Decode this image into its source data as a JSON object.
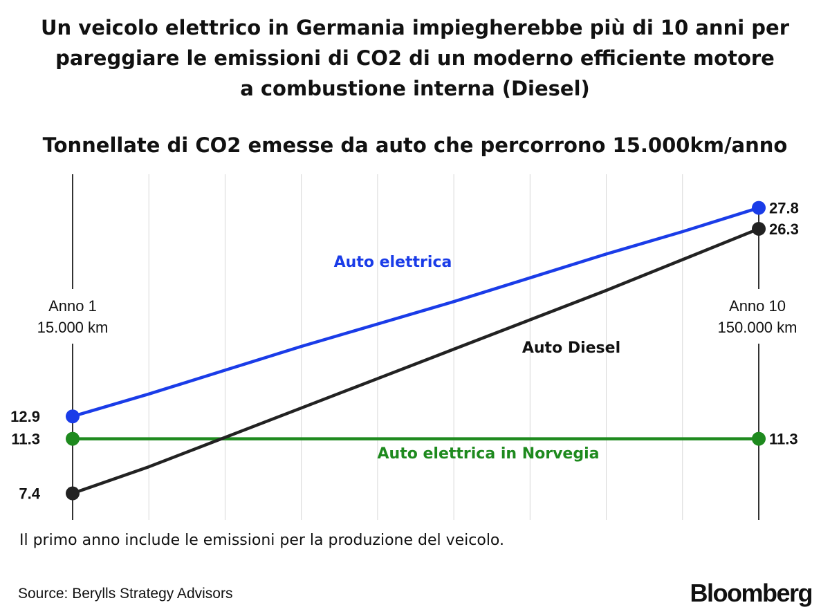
{
  "title_lines": [
    "Un veicolo elettrico in Germania impiegherebbe più di 10 anni per",
    "pareggiare le emissioni di CO2 di un moderno efficiente motore",
    "a combustione interna (Diesel)"
  ],
  "footnote": "Il primo anno include le emissioni per la produzione del veicolo.",
  "source": "Source: Berylls Strategy Advisors",
  "logo": "Bloomberg",
  "chart_data": {
    "type": "line",
    "title": "Tonnellate di CO2 emesse da auto che percorrono 15.000km/anno",
    "x": [
      1,
      2,
      3,
      4,
      5,
      6,
      7,
      8,
      9,
      10
    ],
    "ylim": [
      5.5,
      30.2
    ],
    "grid": true,
    "start_label": {
      "line1": "Anno  1",
      "line2": "15.000 km"
    },
    "end_label": {
      "line1": "Anno 10",
      "line2": "150.000 km"
    },
    "series": [
      {
        "name": "Auto elettrica",
        "color": "#1a3ce8",
        "values": [
          12.9,
          14.5,
          16.2,
          17.9,
          19.5,
          21.1,
          22.8,
          24.5,
          26.1,
          27.8
        ],
        "start_text": "12.9",
        "end_text": "27.8"
      },
      {
        "name": "Auto Diesel",
        "color": "#222222",
        "values": [
          7.4,
          9.3,
          11.4,
          13.5,
          15.6,
          17.7,
          19.8,
          21.9,
          24.1,
          26.3
        ],
        "start_text": "7.4",
        "end_text": "26.3"
      },
      {
        "name": "Auto elettrica in Norvegia",
        "color": "#1e8a1e",
        "values": [
          11.3,
          11.3,
          11.3,
          11.3,
          11.3,
          11.3,
          11.3,
          11.3,
          11.3,
          11.3
        ],
        "start_text": "11.3",
        "end_text": "11.3"
      }
    ]
  }
}
